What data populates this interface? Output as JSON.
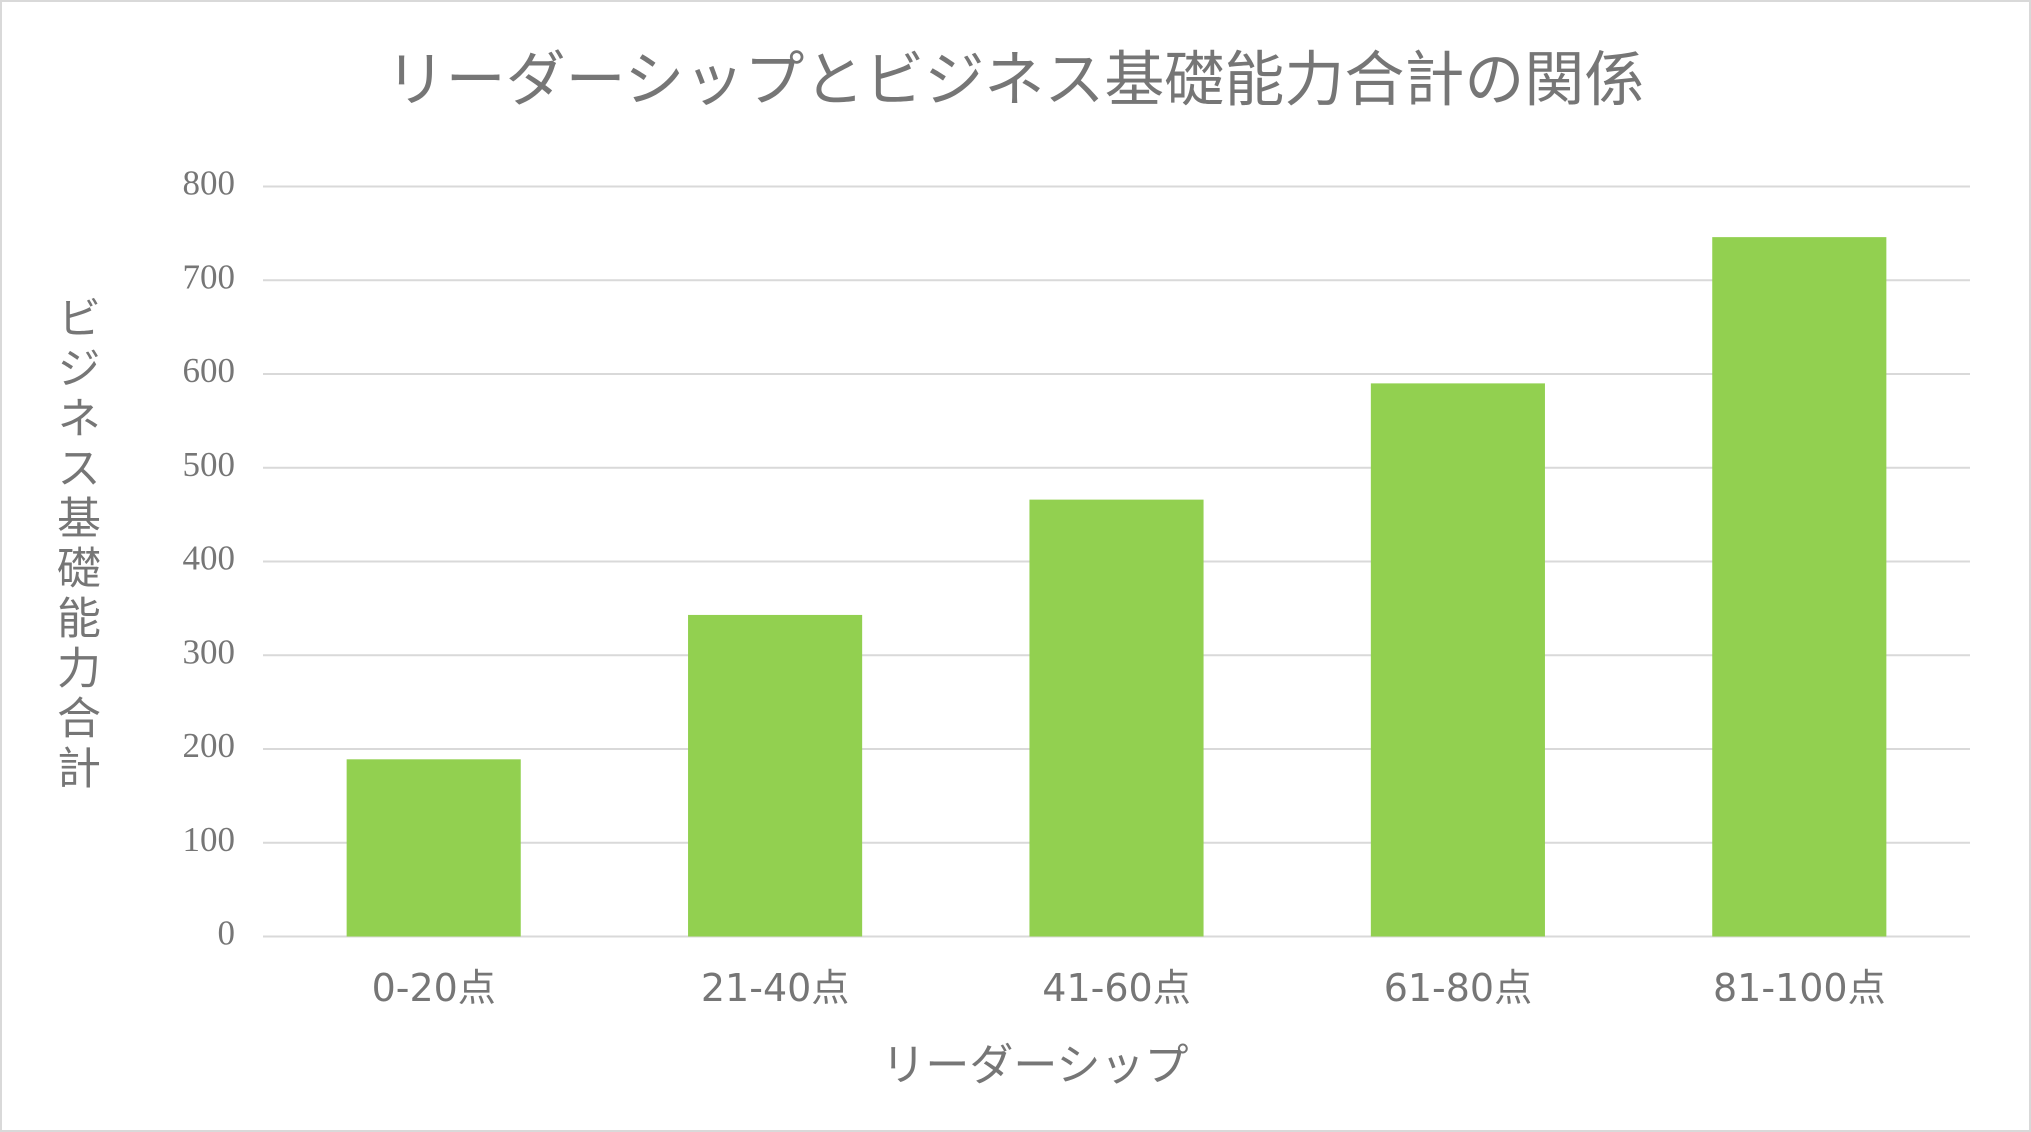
{
  "chart_data": {
    "type": "bar",
    "title": "リーダーシップとビジネス基礎能力合計の関係",
    "x_label": "リーダーシップ",
    "y_label": "ビジネス基礎能力合計",
    "categories": [
      "0-20点",
      "21-40点",
      "41-60点",
      "61-80点",
      "81-100点"
    ],
    "values": [
      189,
      343,
      466,
      590,
      746
    ],
    "color": "#92d050",
    "ylim": [
      0,
      800
    ],
    "yticks": [
      0,
      100,
      200,
      300,
      400,
      500,
      600,
      700,
      800
    ],
    "grid": true
  }
}
